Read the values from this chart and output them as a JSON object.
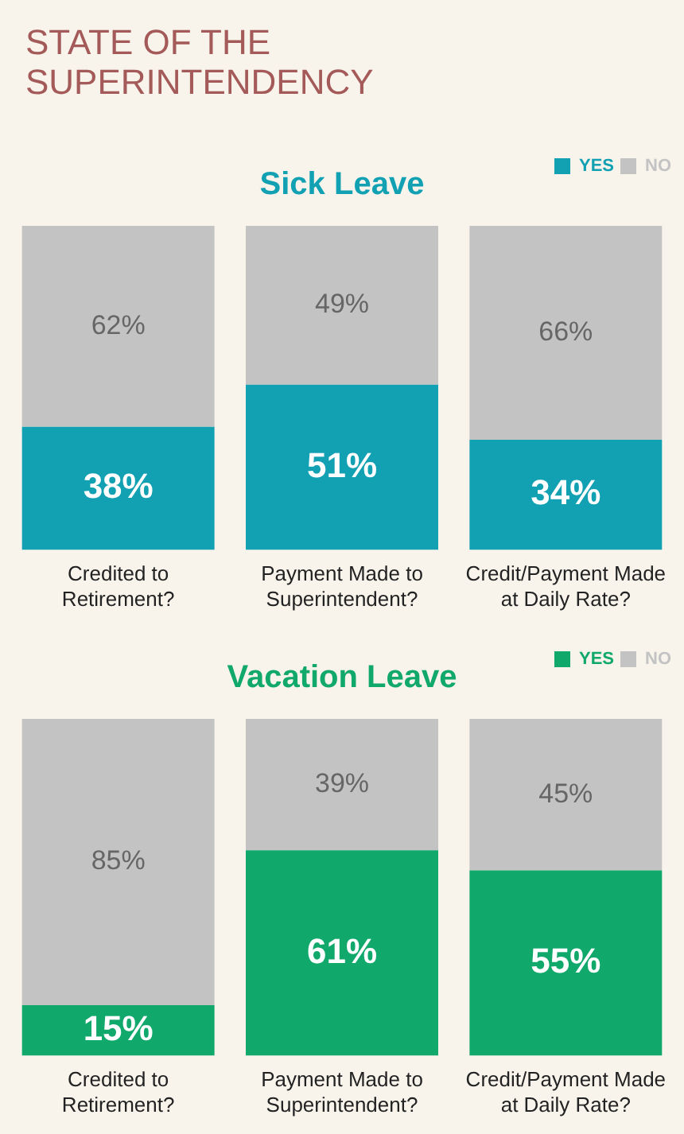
{
  "chart_data": [
    {
      "type": "bar",
      "title": "STATE OF THE SUPERINTENDENCY",
      "subtitle": "Sick Leave",
      "categories": [
        "Credited to Retirement?",
        "Payment Made to Superintendent?",
        "Credit/Payment Made at Daily Rate?"
      ],
      "stacked": true,
      "legend": "top right",
      "grid": false,
      "series": [
        {
          "name": "YES",
          "color": "#12a0b3",
          "values": [
            38,
            51,
            34
          ],
          "value_labels": [
            "38%",
            "51%",
            "34%"
          ]
        },
        {
          "name": "NO",
          "color": "#c3c3c3",
          "values": [
            62,
            49,
            66
          ],
          "value_labels": [
            "62%",
            "49%",
            "66%"
          ]
        }
      ]
    },
    {
      "type": "bar",
      "title": "Vacation Leave",
      "categories": [
        "Credited to Retirement?",
        "Payment Made to Superintendent?",
        "Credit/Payment Made at Daily Rate?"
      ],
      "stacked": true,
      "legend": "top right",
      "grid": false,
      "series": [
        {
          "name": "YES",
          "color": "#11a86b",
          "values": [
            15,
            61,
            55
          ],
          "value_labels": [
            "15%",
            "61%",
            "55%"
          ]
        },
        {
          "name": "NO",
          "color": "#c3c3c3",
          "values": [
            85,
            39,
            45
          ],
          "value_labels": [
            "85%",
            "39%",
            "45%"
          ]
        }
      ]
    }
  ]
}
